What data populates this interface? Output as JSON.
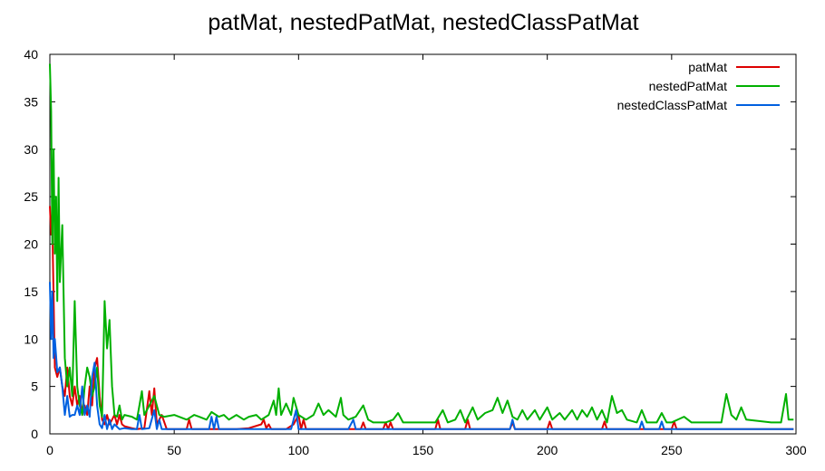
{
  "chart_data": {
    "type": "line",
    "title": "patMat, nestedPatMat, nestedClassPatMat",
    "xlabel": "",
    "ylabel": "",
    "xlim": [
      0,
      300
    ],
    "ylim": [
      0,
      40
    ],
    "xticks": [
      0,
      50,
      100,
      150,
      200,
      250,
      300
    ],
    "yticks": [
      0,
      5,
      10,
      15,
      20,
      25,
      30,
      35,
      40
    ],
    "grid": false,
    "legend_position": "top-right",
    "series": [
      {
        "name": "patMat",
        "color": "#dd0000",
        "points": [
          [
            0,
            24
          ],
          [
            0.5,
            21
          ],
          [
            1,
            22
          ],
          [
            2,
            7
          ],
          [
            3,
            6
          ],
          [
            4,
            7
          ],
          [
            5,
            5
          ],
          [
            6,
            4
          ],
          [
            7,
            7
          ],
          [
            8,
            4
          ],
          [
            9,
            3
          ],
          [
            10,
            5
          ],
          [
            11,
            3
          ],
          [
            12,
            4
          ],
          [
            13,
            2
          ],
          [
            14,
            3
          ],
          [
            15,
            2
          ],
          [
            16,
            5
          ],
          [
            17,
            3
          ],
          [
            18,
            7
          ],
          [
            19,
            8
          ],
          [
            20,
            4
          ],
          [
            21,
            1.5
          ],
          [
            22,
            1
          ],
          [
            23,
            2
          ],
          [
            24,
            1
          ],
          [
            25,
            1.5
          ],
          [
            26,
            2
          ],
          [
            27,
            1
          ],
          [
            28,
            2
          ],
          [
            29,
            1
          ],
          [
            30,
            0.8
          ],
          [
            33,
            0.6
          ],
          [
            35,
            0.5
          ],
          [
            38,
            0.6
          ],
          [
            40,
            4.5
          ],
          [
            41,
            2
          ],
          [
            42,
            4.8
          ],
          [
            43,
            1
          ],
          [
            45,
            2
          ],
          [
            47,
            0.5
          ],
          [
            55,
            0.5
          ],
          [
            56,
            1.5
          ],
          [
            57,
            0.5
          ],
          [
            70,
            0.5
          ],
          [
            75,
            0.5
          ],
          [
            80,
            0.6
          ],
          [
            85,
            1
          ],
          [
            86,
            1.5
          ],
          [
            87,
            0.6
          ],
          [
            88,
            1
          ],
          [
            89,
            0.5
          ],
          [
            95,
            0.5
          ],
          [
            98,
            1
          ],
          [
            100,
            2
          ],
          [
            101,
            0.5
          ],
          [
            102,
            1.5
          ],
          [
            103,
            0.5
          ],
          [
            110,
            0.5
          ],
          [
            125,
            0.5
          ],
          [
            126,
            1.2
          ],
          [
            127,
            0.5
          ],
          [
            134,
            0.5
          ],
          [
            135,
            1.2
          ],
          [
            136,
            0.5
          ],
          [
            137,
            1.2
          ],
          [
            138,
            0.5
          ],
          [
            155,
            0.5
          ],
          [
            156,
            1.5
          ],
          [
            157,
            0.5
          ],
          [
            167,
            0.5
          ],
          [
            168,
            1.5
          ],
          [
            169,
            0.5
          ],
          [
            185,
            0.5
          ],
          [
            186,
            1.2
          ],
          [
            187,
            0.5
          ],
          [
            200,
            0.5
          ],
          [
            201,
            1.3
          ],
          [
            202,
            0.5
          ],
          [
            222,
            0.5
          ],
          [
            223,
            1.3
          ],
          [
            224,
            0.5
          ],
          [
            240,
            0.5
          ],
          [
            250,
            0.5
          ],
          [
            251,
            1.3
          ],
          [
            252,
            0.5
          ],
          [
            299,
            0.5
          ]
        ]
      },
      {
        "name": "nestedPatMat",
        "color": "#00b000",
        "points": [
          [
            0,
            39
          ],
          [
            0.5,
            34
          ],
          [
            1,
            20
          ],
          [
            1.5,
            30
          ],
          [
            2,
            19
          ],
          [
            2.5,
            25
          ],
          [
            3,
            14
          ],
          [
            3.5,
            27
          ],
          [
            4,
            16
          ],
          [
            5,
            22
          ],
          [
            6,
            8
          ],
          [
            7,
            5
          ],
          [
            8,
            7
          ],
          [
            9,
            4
          ],
          [
            10,
            14
          ],
          [
            11,
            5
          ],
          [
            12,
            3
          ],
          [
            13,
            2
          ],
          [
            14,
            5
          ],
          [
            15,
            7
          ],
          [
            16,
            6
          ],
          [
            17,
            4
          ],
          [
            18,
            5
          ],
          [
            19,
            7
          ],
          [
            20,
            3
          ],
          [
            21,
            1.8
          ],
          [
            22,
            14
          ],
          [
            23,
            9
          ],
          [
            24,
            12
          ],
          [
            25,
            5
          ],
          [
            26,
            2
          ],
          [
            27,
            1.8
          ],
          [
            28,
            3
          ],
          [
            29,
            1.5
          ],
          [
            30,
            2
          ],
          [
            33,
            1.8
          ],
          [
            35,
            1.5
          ],
          [
            36,
            3
          ],
          [
            37,
            4.5
          ],
          [
            38,
            2
          ],
          [
            40,
            3
          ],
          [
            42,
            4
          ],
          [
            44,
            2
          ],
          [
            46,
            1.8
          ],
          [
            50,
            2
          ],
          [
            55,
            1.5
          ],
          [
            58,
            2
          ],
          [
            60,
            1.8
          ],
          [
            63,
            1.5
          ],
          [
            65,
            2.3
          ],
          [
            68,
            1.8
          ],
          [
            70,
            2
          ],
          [
            72,
            1.5
          ],
          [
            75,
            2
          ],
          [
            78,
            1.5
          ],
          [
            80,
            1.8
          ],
          [
            83,
            2
          ],
          [
            85,
            1.5
          ],
          [
            88,
            2
          ],
          [
            90,
            3.5
          ],
          [
            91,
            2
          ],
          [
            92,
            4.8
          ],
          [
            93,
            2
          ],
          [
            95,
            3.2
          ],
          [
            97,
            2
          ],
          [
            98,
            3.8
          ],
          [
            100,
            2
          ],
          [
            103,
            1.5
          ],
          [
            106,
            2
          ],
          [
            108,
            3.2
          ],
          [
            110,
            2
          ],
          [
            112,
            2.5
          ],
          [
            115,
            1.8
          ],
          [
            117,
            3.8
          ],
          [
            118,
            2
          ],
          [
            120,
            1.5
          ],
          [
            123,
            1.8
          ],
          [
            126,
            3
          ],
          [
            128,
            1.5
          ],
          [
            130,
            1.2
          ],
          [
            135,
            1.2
          ],
          [
            138,
            1.5
          ],
          [
            140,
            2.2
          ],
          [
            142,
            1.2
          ],
          [
            145,
            1.2
          ],
          [
            150,
            1.2
          ],
          [
            155,
            1.2
          ],
          [
            158,
            2.5
          ],
          [
            160,
            1.2
          ],
          [
            163,
            1.5
          ],
          [
            165,
            2.5
          ],
          [
            167,
            1.2
          ],
          [
            170,
            2.8
          ],
          [
            172,
            1.5
          ],
          [
            175,
            2.2
          ],
          [
            178,
            2.5
          ],
          [
            180,
            3.8
          ],
          [
            182,
            2.2
          ],
          [
            184,
            3.5
          ],
          [
            186,
            1.8
          ],
          [
            188,
            1.5
          ],
          [
            190,
            2.5
          ],
          [
            192,
            1.5
          ],
          [
            195,
            2.5
          ],
          [
            197,
            1.5
          ],
          [
            200,
            2.8
          ],
          [
            202,
            1.5
          ],
          [
            205,
            2.2
          ],
          [
            207,
            1.5
          ],
          [
            210,
            2.5
          ],
          [
            212,
            1.5
          ],
          [
            214,
            2.5
          ],
          [
            216,
            1.8
          ],
          [
            218,
            2.8
          ],
          [
            220,
            1.5
          ],
          [
            222,
            2.5
          ],
          [
            224,
            1.2
          ],
          [
            226,
            4
          ],
          [
            228,
            2.2
          ],
          [
            230,
            2.5
          ],
          [
            232,
            1.5
          ],
          [
            236,
            1.2
          ],
          [
            238,
            2.5
          ],
          [
            240,
            1.2
          ],
          [
            244,
            1.2
          ],
          [
            246,
            2.2
          ],
          [
            248,
            1.2
          ],
          [
            250,
            1.2
          ],
          [
            255,
            1.8
          ],
          [
            258,
            1.2
          ],
          [
            270,
            1.2
          ],
          [
            272,
            4.2
          ],
          [
            274,
            2
          ],
          [
            276,
            1.5
          ],
          [
            278,
            2.8
          ],
          [
            280,
            1.5
          ],
          [
            290,
            1.2
          ],
          [
            294,
            1.2
          ],
          [
            296,
            4.2
          ],
          [
            297,
            1.5
          ],
          [
            299,
            1.5
          ]
        ]
      },
      {
        "name": "nestedClassPatMat",
        "color": "#0060e0",
        "points": [
          [
            0,
            16
          ],
          [
            0.5,
            10
          ],
          [
            1,
            15
          ],
          [
            1.5,
            8
          ],
          [
            2,
            10
          ],
          [
            3,
            6.5
          ],
          [
            4,
            7
          ],
          [
            5,
            5
          ],
          [
            6,
            2
          ],
          [
            7,
            4
          ],
          [
            8,
            1.8
          ],
          [
            9,
            2
          ],
          [
            10,
            2
          ],
          [
            11,
            3
          ],
          [
            12,
            2
          ],
          [
            13,
            5
          ],
          [
            14,
            2
          ],
          [
            15,
            3
          ],
          [
            16,
            1.8
          ],
          [
            17,
            6
          ],
          [
            18,
            7.5
          ],
          [
            19,
            3
          ],
          [
            20,
            1
          ],
          [
            21,
            0.6
          ],
          [
            22,
            2
          ],
          [
            23,
            0.5
          ],
          [
            24,
            1.5
          ],
          [
            25,
            0.5
          ],
          [
            26,
            1
          ],
          [
            28,
            0.5
          ],
          [
            30,
            0.6
          ],
          [
            33,
            0.5
          ],
          [
            35,
            0.5
          ],
          [
            36,
            2
          ],
          [
            37,
            0.5
          ],
          [
            40,
            0.6
          ],
          [
            42,
            2.5
          ],
          [
            43,
            0.5
          ],
          [
            44,
            1.5
          ],
          [
            45,
            0.5
          ],
          [
            50,
            0.5
          ],
          [
            60,
            0.5
          ],
          [
            64,
            0.5
          ],
          [
            65,
            1.8
          ],
          [
            66,
            0.5
          ],
          [
            67,
            1.8
          ],
          [
            68,
            0.5
          ],
          [
            75,
            0.5
          ],
          [
            80,
            0.5
          ],
          [
            90,
            0.5
          ],
          [
            95,
            0.5
          ],
          [
            97,
            0.5
          ],
          [
            99,
            2.5
          ],
          [
            100,
            0.5
          ],
          [
            110,
            0.5
          ],
          [
            120,
            0.5
          ],
          [
            122,
            1.5
          ],
          [
            123,
            0.5
          ],
          [
            130,
            0.5
          ],
          [
            140,
            0.5
          ],
          [
            150,
            0.5
          ],
          [
            160,
            0.5
          ],
          [
            170,
            0.5
          ],
          [
            180,
            0.5
          ],
          [
            185,
            0.5
          ],
          [
            186,
            1.5
          ],
          [
            187,
            0.5
          ],
          [
            200,
            0.5
          ],
          [
            210,
            0.5
          ],
          [
            220,
            0.5
          ],
          [
            230,
            0.5
          ],
          [
            237,
            0.5
          ],
          [
            238,
            1.3
          ],
          [
            239,
            0.5
          ],
          [
            245,
            0.5
          ],
          [
            246,
            1.3
          ],
          [
            247,
            0.5
          ],
          [
            260,
            0.5
          ],
          [
            270,
            0.5
          ],
          [
            280,
            0.5
          ],
          [
            290,
            0.5
          ],
          [
            299,
            0.5
          ]
        ]
      }
    ]
  }
}
